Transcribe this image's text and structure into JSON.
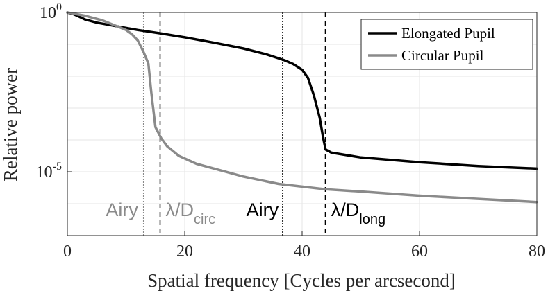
{
  "chart_data": {
    "type": "line",
    "title": "",
    "xlabel": "Spatial frequency [Cycles per arcsecond]",
    "ylabel": "Relative power",
    "xlim": [
      0,
      80
    ],
    "ylim_log10": [
      -7,
      0
    ],
    "y_scale": "log",
    "grid": true,
    "legend_position": "top-right",
    "x_ticks": [
      {
        "value": 0,
        "label": "0"
      },
      {
        "value": 20,
        "label": "20"
      },
      {
        "value": 40,
        "label": "40"
      },
      {
        "value": 60,
        "label": "60"
      },
      {
        "value": 80,
        "label": "80"
      }
    ],
    "y_ticks": [
      {
        "log10": 0,
        "base": "10",
        "exp": "0"
      },
      {
        "log10": -5,
        "base": "10",
        "exp": "-5"
      }
    ],
    "series": [
      {
        "name": "Elongated Pupil",
        "color": "#000000",
        "points": [
          [
            0,
            0
          ],
          [
            1,
            -0.05
          ],
          [
            2,
            -0.13
          ],
          [
            3,
            -0.22
          ],
          [
            5,
            -0.32
          ],
          [
            8,
            -0.42
          ],
          [
            12,
            -0.55
          ],
          [
            16,
            -0.66
          ],
          [
            20,
            -0.78
          ],
          [
            25,
            -0.95
          ],
          [
            30,
            -1.13
          ],
          [
            34,
            -1.32
          ],
          [
            37,
            -1.5
          ],
          [
            38.5,
            -1.62
          ],
          [
            40,
            -1.8
          ],
          [
            41,
            -2.05
          ],
          [
            42,
            -2.6
          ],
          [
            43,
            -3.3
          ],
          [
            43.6,
            -3.95
          ],
          [
            44,
            -4.3
          ],
          [
            45,
            -4.4
          ],
          [
            50,
            -4.55
          ],
          [
            60,
            -4.7
          ],
          [
            70,
            -4.82
          ],
          [
            80,
            -4.9
          ]
        ]
      },
      {
        "name": "Circular Pupil",
        "color": "#8a8a8a",
        "points": [
          [
            0,
            0
          ],
          [
            3,
            -0.1
          ],
          [
            6,
            -0.25
          ],
          [
            8,
            -0.4
          ],
          [
            10,
            -0.55
          ],
          [
            11,
            -0.68
          ],
          [
            12,
            -0.88
          ],
          [
            13,
            -1.25
          ],
          [
            13.8,
            -1.6
          ],
          [
            14.3,
            -2.5
          ],
          [
            15,
            -3.6
          ],
          [
            16,
            -3.95
          ],
          [
            17,
            -4.2
          ],
          [
            19,
            -4.5
          ],
          [
            22,
            -4.75
          ],
          [
            26,
            -4.95
          ],
          [
            30,
            -5.15
          ],
          [
            36,
            -5.38
          ],
          [
            44,
            -5.55
          ],
          [
            50,
            -5.62
          ],
          [
            60,
            -5.75
          ],
          [
            70,
            -5.85
          ],
          [
            80,
            -5.95
          ]
        ]
      }
    ],
    "reference_lines": [
      {
        "x": 13,
        "label": "Airy",
        "label_sub": "",
        "color": "#8a8a8a",
        "style": "dotted"
      },
      {
        "x": 15.8,
        "label": "λ/D",
        "label_sub": "circ",
        "color": "#8a8a8a",
        "style": "dashed"
      },
      {
        "x": 36.7,
        "label": "Airy",
        "label_sub": "",
        "color": "#000000",
        "style": "dotted"
      },
      {
        "x": 44,
        "label": "λ/D",
        "label_sub": "long",
        "color": "#000000",
        "style": "dashed"
      }
    ]
  }
}
